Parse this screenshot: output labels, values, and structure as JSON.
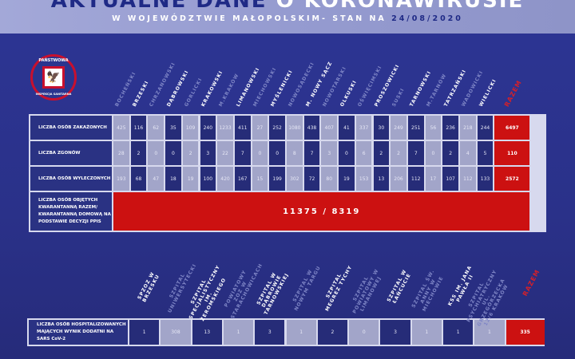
{
  "header": {
    "title_dark": "AKTUALNE DANE",
    "title_light": "O KORONAWIRUSIE",
    "subtitle": "W WOJEWÓDZTWIE MAŁOPOLSKIM- STAN NA",
    "date": "24/08/2020"
  },
  "logo": {
    "top": "PAŃSTWOWA",
    "bottom": "INSPEKCJA SANITARNA",
    "icon": "polish-eagle-icon"
  },
  "colors": {
    "light_cell": "#a2a5c9",
    "dark_cell": "#262c78",
    "total": "#cc1111",
    "background": "#2a3189"
  },
  "counties": {
    "columns": [
      "BOCHEŃSKI",
      "BRZESKI",
      "CHRZANOWSKI",
      "DĄBROWSKI",
      "GORLICKI",
      "KRAKOWSKI",
      "M.KRAKÓW",
      "LIMANOWSKI",
      "MIECHOWSKI",
      "MYŚLENICKI",
      "NOWOSĄDECKI",
      "M. NOWY SĄCZ",
      "NOWOTARSKI",
      "OLKUSKI",
      "OŚWIĘCIMSKI",
      "PROSZOWICKI",
      "SUSKI",
      "TARNOWSKI",
      "M.TARNÓW",
      "TATRZAŃSKI",
      "WADOWICKI",
      "WIELICKI",
      "RAZEM"
    ],
    "rows": [
      {
        "label": "LICZBA OSÓB ZAKAŻONYCH",
        "values": [
          "425",
          "116",
          "62",
          "35",
          "109",
          "240",
          "1233",
          "411",
          "27",
          "252",
          "1080",
          "438",
          "407",
          "41",
          "337",
          "30",
          "249",
          "251",
          "56",
          "236",
          "218",
          "244",
          "6497"
        ]
      },
      {
        "label": "LICZBA ZGONÓW",
        "values": [
          "28",
          "2",
          "0",
          "0",
          "2",
          "3",
          "22",
          "7",
          "0",
          "0",
          "8",
          "7",
          "3",
          "0",
          "6",
          "2",
          "2",
          "7",
          "0",
          "2",
          "4",
          "5",
          "110"
        ]
      },
      {
        "label": "LICZBA OSÓB WYLECZONYCH",
        "values": [
          "193",
          "68",
          "47",
          "18",
          "19",
          "100",
          "420",
          "167",
          "15",
          "199",
          "302",
          "72",
          "80",
          "19",
          "153",
          "13",
          "206",
          "112",
          "17",
          "107",
          "112",
          "133",
          "2572"
        ]
      }
    ],
    "quarantine": {
      "label": "LICZBA OSÓB OBJĘTYCH KWARANTANNĄ RAZEM/ KWARANTANNĄ DOMOWĄ NA PODSTAWIE DECYZJI PPIS",
      "value": "11375 / 8319"
    }
  },
  "hospitals": {
    "columns": [
      "SPZOZ W BRZESKU",
      "SZPITAL UNIWERSYTECKI",
      "SZPITAL SPECJALISTYCZNY IM. ŻEROMSKIEGO",
      "POWIATOWY ZOZ W STARACHOWICACH",
      "SZPITAL W DĄBROWIE TARNOWSKIEJ",
      "SZPITAL W NOWYM TARGU",
      "SZPITAL MEGREZ TYCHY",
      "SZPITAL POWIATOWY W LIMANOWEJ",
      "SZPITAL W ŁAŃCUCIE",
      "SZPITAL ŚW. ANNY W MIECHOWIE",
      "KSS IM. JANA PAWŁA II",
      "SZPITAL PSYCHIATRYCZNY UL. GRZEGÓRZECKA 12/6 KRAKÓW",
      "RAZEM"
    ],
    "row": {
      "label": "LICZBA OSÓB HOSPITALIZOWANYCH MAJĄCYCH WYNIK DODATNI NA SARS CoV-2",
      "values": [
        "1",
        "308",
        "13",
        "1",
        "3",
        "1",
        "2",
        "0",
        "3",
        "1",
        "1",
        "1",
        "335"
      ]
    }
  }
}
